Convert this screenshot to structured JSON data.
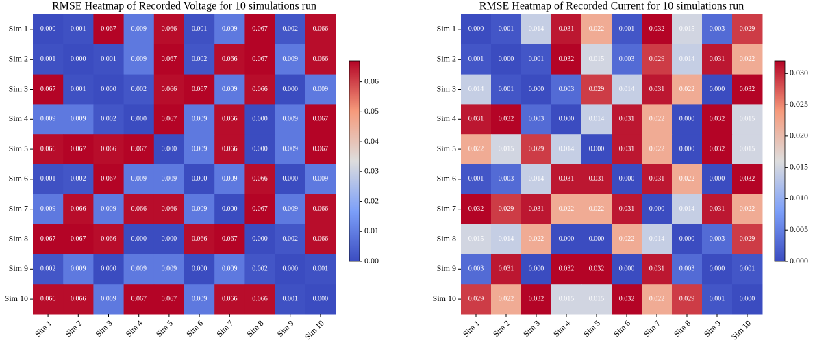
{
  "chart_data": [
    {
      "type": "heatmap",
      "title": "RMSE Heatmap of Recorded Voltage for 10 simulations run",
      "x_categories": [
        "Sim 1",
        "Sim 2",
        "Sim 3",
        "Sim 4",
        "Sim 5",
        "Sim 6",
        "Sim 7",
        "Sim 8",
        "Sim 9",
        "Sim 10"
      ],
      "y_categories": [
        "Sim 1",
        "Sim 2",
        "Sim 3",
        "Sim 4",
        "Sim 5",
        "Sim 6",
        "Sim 7",
        "Sim 8",
        "Sim 9",
        "Sim 10"
      ],
      "values": [
        [
          0,
          0.001,
          0.067,
          0.009,
          0.066,
          0.001,
          0.009,
          0.067,
          0.002,
          0.066
        ],
        [
          0.001,
          0,
          0.001,
          0.009,
          0.067,
          0.002,
          0.066,
          0.067,
          0.009,
          0.066
        ],
        [
          0.067,
          0.001,
          0,
          0.002,
          0.066,
          0.067,
          0.009,
          0.066,
          0,
          0.009
        ],
        [
          0.009,
          0.009,
          0.002,
          0,
          0.067,
          0.009,
          0.066,
          0,
          0.009,
          0.067
        ],
        [
          0.066,
          0.067,
          0.066,
          0.067,
          0,
          0.009,
          0.066,
          0,
          0.009,
          0.067
        ],
        [
          0.001,
          0.002,
          0.067,
          0.009,
          0.009,
          0,
          0.009,
          0.066,
          0,
          0.009
        ],
        [
          0.009,
          0.066,
          0.009,
          0.066,
          0.066,
          0.009,
          0,
          0.067,
          0.009,
          0.066
        ],
        [
          0.067,
          0.067,
          0.066,
          0,
          0,
          0.066,
          0.067,
          0,
          0.002,
          0.066
        ],
        [
          0.002,
          0.009,
          0,
          0.009,
          0.009,
          0,
          0.009,
          0.002,
          0,
          0.001
        ],
        [
          0.066,
          0.066,
          0.009,
          0.067,
          0.067,
          0.009,
          0.066,
          0.066,
          0.001,
          0
        ]
      ],
      "value_labels": [
        [
          "0.000",
          "0.001",
          "0.067",
          "0.009",
          "0.066",
          "0.001",
          "0.009",
          "0.067",
          "0.002",
          "0.066"
        ],
        [
          "0.001",
          "0.000",
          "0.001",
          "0.009",
          "0.067",
          "0.002",
          "0.066",
          "0.067",
          "0.009",
          "0.066"
        ],
        [
          "0.067",
          "0.001",
          "0.000",
          "0.002",
          "0.066",
          "0.067",
          "0.009",
          "0.066",
          "0.000",
          "0.009"
        ],
        [
          "0.009",
          "0.009",
          "0.002",
          "0.000",
          "0.067",
          "0.009",
          "0.066",
          "0.000",
          "0.009",
          "0.067"
        ],
        [
          "0.066",
          "0.067",
          "0.066",
          "0.067",
          "0.000",
          "0.009",
          "0.066",
          "0.000",
          "0.009",
          "0.067"
        ],
        [
          "0.001",
          "0.002",
          "0.067",
          "0.009",
          "0.009",
          "0.000",
          "0.009",
          "0.066",
          "0.000",
          "0.009"
        ],
        [
          "0.009",
          "0.066",
          "0.009",
          "0.066",
          "0.066",
          "0.009",
          "0.000",
          "0.067",
          "0.009",
          "0.066"
        ],
        [
          "0.067",
          "0.067",
          "0.066",
          "0.000",
          "0.000",
          "0.066",
          "0.067",
          "0.000",
          "0.002",
          "0.066"
        ],
        [
          "0.002",
          "0.009",
          "0.000",
          "0.009",
          "0.009",
          "0.000",
          "0.009",
          "0.002",
          "0.000",
          "0.001"
        ],
        [
          "0.066",
          "0.066",
          "0.009",
          "0.067",
          "0.067",
          "0.009",
          "0.066",
          "0.066",
          "0.001",
          "0.000"
        ]
      ],
      "colormap": "coolwarm",
      "clim": [
        0,
        0.067
      ],
      "cticks": [
        {
          "value": 0,
          "label": "0.00"
        },
        {
          "value": 0.01,
          "label": "0.01"
        },
        {
          "value": 0.02,
          "label": "0.02"
        },
        {
          "value": 0.03,
          "label": "0.03"
        },
        {
          "value": 0.04,
          "label": "0.04"
        },
        {
          "value": 0.05,
          "label": "0.05"
        },
        {
          "value": 0.06,
          "label": "0.06"
        }
      ]
    },
    {
      "type": "heatmap",
      "title": "RMSE Heatmap of Recorded Current for 10 simulations run",
      "x_categories": [
        "Sim 1",
        "Sim 2",
        "Sim 3",
        "Sim 4",
        "Sim 5",
        "Sim 6",
        "Sim 7",
        "Sim 8",
        "Sim 9",
        "Sim 10"
      ],
      "y_categories": [
        "Sim 1",
        "Sim 2",
        "Sim 3",
        "Sim 4",
        "Sim 5",
        "Sim 6",
        "Sim 7",
        "Sim 8",
        "Sim 9",
        "Sim 10"
      ],
      "values": [
        [
          0,
          0.001,
          0.014,
          0.031,
          0.022,
          0.001,
          0.032,
          0.015,
          0.003,
          0.029
        ],
        [
          0.001,
          0,
          0.001,
          0.032,
          0.015,
          0.003,
          0.029,
          0.014,
          0.031,
          0.022
        ],
        [
          0.014,
          0.001,
          0,
          0.003,
          0.029,
          0.014,
          0.031,
          0.022,
          0,
          0.032
        ],
        [
          0.031,
          0.032,
          0.003,
          0,
          0.014,
          0.031,
          0.022,
          0,
          0.032,
          0.015
        ],
        [
          0.022,
          0.015,
          0.029,
          0.014,
          0,
          0.031,
          0.022,
          0,
          0.032,
          0.015
        ],
        [
          0.001,
          0.003,
          0.014,
          0.031,
          0.031,
          0,
          0.031,
          0.022,
          0,
          0.032
        ],
        [
          0.032,
          0.029,
          0.031,
          0.022,
          0.022,
          0.031,
          0,
          0.014,
          0.031,
          0.022
        ],
        [
          0.015,
          0.014,
          0.022,
          0,
          0,
          0.022,
          0.014,
          0,
          0.003,
          0.029
        ],
        [
          0.003,
          0.031,
          0,
          0.032,
          0.032,
          0,
          0.031,
          0.003,
          0,
          0.001
        ],
        [
          0.029,
          0.022,
          0.032,
          0.015,
          0.015,
          0.032,
          0.022,
          0.029,
          0.001,
          0
        ]
      ],
      "value_labels": [
        [
          "0.000",
          "0.001",
          "0.014",
          "0.031",
          "0.022",
          "0.001",
          "0.032",
          "0.015",
          "0.003",
          "0.029"
        ],
        [
          "0.001",
          "0.000",
          "0.001",
          "0.032",
          "0.015",
          "0.003",
          "0.029",
          "0.014",
          "0.031",
          "0.022"
        ],
        [
          "0.014",
          "0.001",
          "0.000",
          "0.003",
          "0.029",
          "0.014",
          "0.031",
          "0.022",
          "0.000",
          "0.032"
        ],
        [
          "0.031",
          "0.032",
          "0.003",
          "0.000",
          "0.014",
          "0.031",
          "0.022",
          "0.000",
          "0.032",
          "0.015"
        ],
        [
          "0.022",
          "0.015",
          "0.029",
          "0.014",
          "0.000",
          "0.031",
          "0.022",
          "0.000",
          "0.032",
          "0.015"
        ],
        [
          "0.001",
          "0.003",
          "0.014",
          "0.031",
          "0.031",
          "0.000",
          "0.031",
          "0.022",
          "0.000",
          "0.032"
        ],
        [
          "0.032",
          "0.029",
          "0.031",
          "0.022",
          "0.022",
          "0.031",
          "0.000",
          "0.014",
          "0.031",
          "0.022"
        ],
        [
          "0.015",
          "0.014",
          "0.022",
          "0.000",
          "0.000",
          "0.022",
          "0.014",
          "0.000",
          "0.003",
          "0.029"
        ],
        [
          "0.003",
          "0.031",
          "0.000",
          "0.032",
          "0.032",
          "0.000",
          "0.031",
          "0.003",
          "0.000",
          "0.001"
        ],
        [
          "0.029",
          "0.022",
          "0.032",
          "0.015",
          "0.015",
          "0.032",
          "0.022",
          "0.029",
          "0.001",
          "0.000"
        ]
      ],
      "colormap": "coolwarm",
      "clim": [
        0,
        0.032
      ],
      "cticks": [
        {
          "value": 0,
          "label": "0.000"
        },
        {
          "value": 0.005,
          "label": "0.005"
        },
        {
          "value": 0.01,
          "label": "0.010"
        },
        {
          "value": 0.015,
          "label": "0.015"
        },
        {
          "value": 0.02,
          "label": "0.020"
        },
        {
          "value": 0.025,
          "label": "0.025"
        },
        {
          "value": 0.03,
          "label": "0.030"
        }
      ]
    }
  ]
}
